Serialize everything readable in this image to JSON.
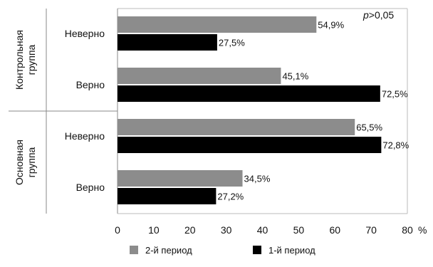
{
  "chart_data": {
    "type": "bar",
    "orientation": "horizontal",
    "annotation": "p>0,05",
    "groups": [
      {
        "label": "Контрольная группа",
        "label_lines": [
          "Контрольная",
          "группа"
        ],
        "categories": [
          "Неверно",
          "Верно"
        ]
      },
      {
        "label": "Основная группа",
        "label_lines": [
          "Основная",
          "группа"
        ],
        "categories": [
          "Неверно",
          "Верно"
        ]
      }
    ],
    "series": [
      {
        "name": "2-й период",
        "color": "#8c8c8c",
        "values": [
          54.9,
          45.1,
          65.5,
          34.5
        ],
        "labels": [
          "54,9%",
          "45,1%",
          "65,5%",
          "34,5%"
        ]
      },
      {
        "name": "1-й период",
        "color": "#000000",
        "values": [
          27.5,
          72.5,
          72.8,
          27.2
        ],
        "labels": [
          "27,5%",
          "72,5%",
          "72,8%",
          "27,2%"
        ]
      }
    ],
    "xlim": [
      0,
      80
    ],
    "xticks": [
      "0",
      "10",
      "20",
      "30",
      "40",
      "50",
      "60",
      "70",
      "80"
    ],
    "xunit": "%",
    "legend_position": "bottom"
  }
}
